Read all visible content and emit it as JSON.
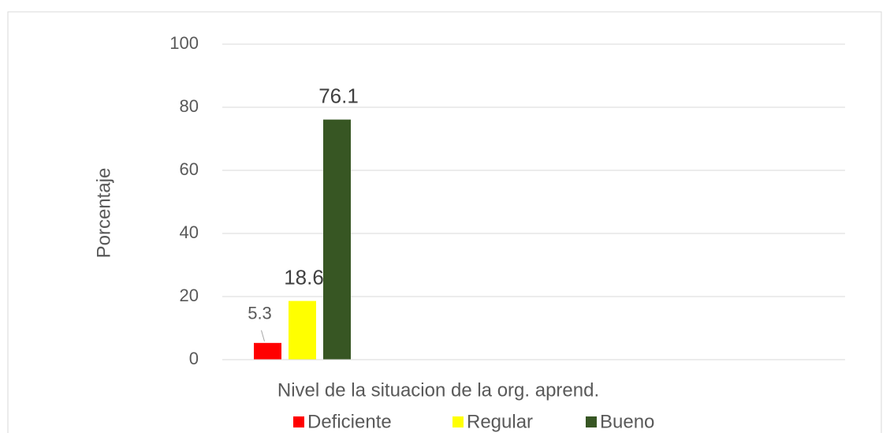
{
  "chart_data": {
    "type": "bar",
    "categories": [
      null
    ],
    "series": [
      {
        "name": "Deficiente",
        "color": "#ff0000",
        "values": [
          5.3
        ]
      },
      {
        "name": "Regular",
        "color": "#ffff00",
        "values": [
          18.6
        ]
      },
      {
        "name": "Bueno",
        "color": "#375623",
        "values": [
          76.1
        ]
      }
    ],
    "ylabel": "Porcentaje",
    "xlabel": "Nivel de la situacion de la org. aprend.",
    "ylim": [
      0,
      100
    ],
    "yticks": [
      0,
      20,
      40,
      60,
      80,
      100
    ],
    "grid": true,
    "legend": "bottom"
  }
}
